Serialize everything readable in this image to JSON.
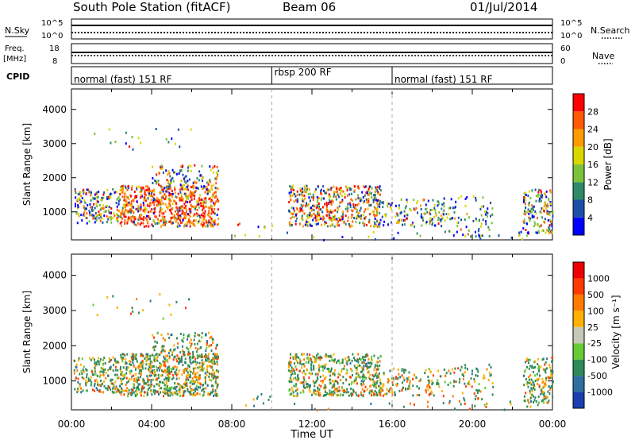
{
  "header": {
    "station": "South Pole Station (fitACF)",
    "beam": "Beam 06",
    "date": "01/Jul/2014"
  },
  "status_panels": {
    "nsky_label": "N.Sky",
    "nsearch_label": "N.Search",
    "nsky_ticks": [
      "10^5",
      "10^0"
    ],
    "nsearch_ticks": [
      "10^5",
      "10^0"
    ],
    "freq_label_1": "Freq.",
    "freq_label_2": "[MHz]",
    "freq_ticks": [
      "18",
      "8"
    ],
    "nave_label": "Nave",
    "nave_ticks": [
      "60",
      "0"
    ],
    "cpid_label": "CPID",
    "cpid_segments": [
      {
        "label": "normal (fast) 151 RF",
        "start_hour": 0
      },
      {
        "label": "rbsp 200 RF",
        "start_hour": 10
      },
      {
        "label": "normal (fast) 151 RF",
        "start_hour": 16
      }
    ]
  },
  "chart_data": [
    {
      "type": "heatmap",
      "name": "power",
      "ylabel": "Slant Range [km]",
      "xlim": [
        0,
        24
      ],
      "ylim": [
        180,
        4600
      ],
      "yticks": [
        1000,
        2000,
        3000,
        4000
      ],
      "colorbar_label": "Power [dB]",
      "colorbar_ticks": [
        "28",
        "24",
        "20",
        "16",
        "12",
        "8",
        "4"
      ],
      "colorbar_colors": [
        "#0000ff",
        "#1c4fa8",
        "#2f8a6a",
        "#7cc33a",
        "#d8d800",
        "#ff9a00",
        "#ff5a00",
        "#ff0000"
      ]
    },
    {
      "type": "heatmap",
      "name": "velocity",
      "ylabel": "Slant Range [km]",
      "xlabel": "Time UT",
      "xlim": [
        0,
        24
      ],
      "ylim": [
        180,
        4600
      ],
      "yticks": [
        1000,
        2000,
        3000,
        4000
      ],
      "xticks": [
        "00:00",
        "04:00",
        "08:00",
        "12:00",
        "16:00",
        "20:00",
        "00:00"
      ],
      "colorbar_label": "Velocity [m s⁻¹]",
      "colorbar_ticks": [
        "1000",
        "500",
        "100",
        "25",
        "-25",
        "-100",
        "-500",
        "-1000"
      ],
      "colorbar_colors": [
        "#1b3fb0",
        "#2f6f9f",
        "#2e8b57",
        "#66cc33",
        "#c8c8b8",
        "#ffb000",
        "#ff7a00",
        "#ff3a00",
        "#ee0000"
      ]
    }
  ]
}
